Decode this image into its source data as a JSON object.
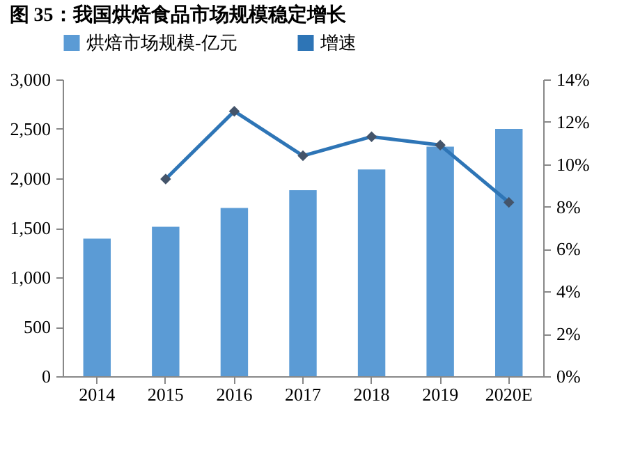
{
  "chart_data": {
    "type": "bar",
    "title": "图 35：我国烘焙食品市场规模稳定增长",
    "categories": [
      "2014",
      "2015",
      "2016",
      "2017",
      "2018",
      "2019",
      "2020E"
    ],
    "series": [
      {
        "name": "烘焙市场规模-亿元",
        "color": "#5b9bd5",
        "values": [
          1390,
          1510,
          1700,
          1880,
          2090,
          2320,
          2500
        ]
      },
      {
        "name": "增速",
        "type": "line",
        "axis": "y2",
        "color": "#2e75b6",
        "marker": "diamond",
        "values": [
          null,
          9.3,
          12.5,
          10.4,
          11.3,
          10.9,
          8.2
        ]
      }
    ],
    "ylim": [
      0,
      3000
    ],
    "yticks": [
      {
        "value": 0,
        "label": "0"
      },
      {
        "value": 500,
        "label": "500"
      },
      {
        "value": 1000,
        "label": "1,000"
      },
      {
        "value": 1500,
        "label": "1,500"
      },
      {
        "value": 2000,
        "label": "2,000"
      },
      {
        "value": 2500,
        "label": "2,500"
      },
      {
        "value": 3000,
        "label": "3,000"
      }
    ],
    "y2lim": [
      0,
      14
    ],
    "y2ticks": [
      {
        "value": 0,
        "label": "0%"
      },
      {
        "value": 2,
        "label": "2%"
      },
      {
        "value": 4,
        "label": "4%"
      },
      {
        "value": 6,
        "label": "6%"
      },
      {
        "value": 8,
        "label": "8%"
      },
      {
        "value": 10,
        "label": "10%"
      },
      {
        "value": 12,
        "label": "12%"
      },
      {
        "value": 14,
        "label": "14%"
      }
    ],
    "legend": "top",
    "grid": false
  }
}
